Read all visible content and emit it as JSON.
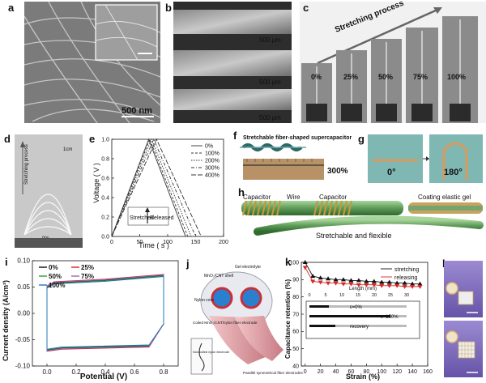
{
  "panels": {
    "a": {
      "label": "a",
      "scale_bar": "500 nm"
    },
    "b": {
      "label": "b",
      "scale_bars": [
        "500 µm",
        "500 µm",
        "500 µm"
      ]
    },
    "c": {
      "label": "c",
      "title": "Stretching process",
      "strains": [
        "0%",
        "25%",
        "50%",
        "75%",
        "100%"
      ]
    },
    "d": {
      "label": "d",
      "arrow_label": "Stretching process",
      "scale": "1cm",
      "zero": "0%"
    },
    "e": {
      "label": "e",
      "xlabel": "Time ( s )",
      "ylabel": "Voltage ( V )",
      "legend": [
        "0%",
        "100%",
        "200%",
        "300%",
        "400%"
      ],
      "stretched": "Stretched",
      "released": "Released"
    },
    "f": {
      "label": "f",
      "title": "Stretchable fiber-shaped supercapacitor",
      "percent": "300%"
    },
    "g": {
      "label": "g",
      "angle_left": "0°",
      "angle_right": "180°"
    },
    "h": {
      "label": "h",
      "capacitor_left": "Capacitor",
      "wire": "Wire",
      "capacitor_right": "Capacitor",
      "coating": "Coating elastic gel",
      "caption": "Stretchable and flexible"
    },
    "i": {
      "label": "i",
      "xlabel": "Potential (V)",
      "ylabel": "Current density (A/cm³)",
      "legend": [
        "0%",
        "25%",
        "50%",
        "75%",
        "100%"
      ]
    },
    "j": {
      "label": "j",
      "gel": "Gel electrolyte",
      "shell": "MnO₂/CNT shell",
      "core": "Nylon core",
      "coiled": "Coiled MnO₂/CNT/nylon fiber electrode",
      "parallel": "Parallel symmetrical fiber electrodes",
      "inset": "Non-coiled nylon electrode"
    },
    "k": {
      "label": "k",
      "xlabel": "Strain (%)",
      "ylabel": "Capacitance retention (%)",
      "legend": [
        "stretching",
        "releasing"
      ],
      "inset_xlabel": "Length (mm)",
      "eps0": "ε=0%",
      "eps150": "ε=150%",
      "recovery": "recovery"
    },
    "l": {
      "label": "l"
    }
  },
  "chart_data": [
    {
      "type": "line",
      "title": "",
      "xlabel": "Time ( s )",
      "ylabel": "Voltage ( V )",
      "xlim": [
        0,
        200
      ],
      "ylim": [
        0,
        1.0
      ],
      "xticks": [
        0,
        50,
        100,
        150,
        200
      ],
      "yticks": [
        0.0,
        0.2,
        0.4,
        0.6,
        0.8,
        1.0
      ],
      "legend_position": "top-right",
      "series": [
        {
          "name": "0%",
          "x": [
            0,
            66,
            132
          ],
          "y": [
            0,
            1.0,
            0
          ]
        },
        {
          "name": "100%",
          "x": [
            0,
            68,
            136
          ],
          "y": [
            0,
            1.0,
            0
          ]
        },
        {
          "name": "200%",
          "x": [
            0,
            71,
            142
          ],
          "y": [
            0,
            1.0,
            0
          ]
        },
        {
          "name": "300%",
          "x": [
            0,
            75,
            150
          ],
          "y": [
            0,
            1.0,
            0
          ]
        },
        {
          "name": "400%",
          "x": [
            0,
            80,
            160
          ],
          "y": [
            0,
            1.0,
            0
          ]
        }
      ]
    },
    {
      "type": "line",
      "title": "",
      "xlabel": "Potential (V)",
      "ylabel": "Current density (A/cm³)",
      "xlim": [
        -0.1,
        0.9
      ],
      "ylim": [
        -0.1,
        0.1
      ],
      "xticks": [
        0.0,
        0.2,
        0.4,
        0.6,
        0.8
      ],
      "yticks": [
        -0.1,
        -0.05,
        0.0,
        0.05,
        0.1
      ],
      "legend_position": "top-left",
      "series": [
        {
          "name": "0%",
          "upper": [
            [
              0,
              0.05
            ],
            [
              0.05,
              0.058
            ],
            [
              0.4,
              0.063
            ],
            [
              0.8,
              0.072
            ]
          ],
          "lower": [
            [
              0.8,
              -0.02
            ],
            [
              0.7,
              -0.062
            ],
            [
              0.1,
              -0.066
            ],
            [
              0,
              -0.07
            ]
          ]
        },
        {
          "name": "25%",
          "upper": [
            [
              0,
              0.052
            ],
            [
              0.05,
              0.06
            ],
            [
              0.4,
              0.065
            ],
            [
              0.8,
              0.074
            ]
          ],
          "lower": [
            [
              0.8,
              -0.02
            ],
            [
              0.7,
              -0.064
            ],
            [
              0.1,
              -0.068
            ],
            [
              0,
              -0.072
            ]
          ]
        },
        {
          "name": "50%",
          "upper": [
            [
              0,
              0.048
            ],
            [
              0.05,
              0.057
            ],
            [
              0.4,
              0.062
            ],
            [
              0.8,
              0.071
            ]
          ],
          "lower": [
            [
              0.8,
              -0.02
            ],
            [
              0.7,
              -0.061
            ],
            [
              0.1,
              -0.065
            ],
            [
              0,
              -0.069
            ]
          ]
        },
        {
          "name": "75%",
          "upper": [
            [
              0,
              0.051
            ],
            [
              0.05,
              0.059
            ],
            [
              0.4,
              0.064
            ],
            [
              0.8,
              0.073
            ]
          ],
          "lower": [
            [
              0.8,
              -0.02
            ],
            [
              0.7,
              -0.063
            ],
            [
              0.1,
              -0.067
            ],
            [
              0,
              -0.071
            ]
          ]
        },
        {
          "name": "100%",
          "upper": [
            [
              0,
              0.049
            ],
            [
              0.05,
              0.056
            ],
            [
              0.4,
              0.061
            ],
            [
              0.8,
              0.07
            ]
          ],
          "lower": [
            [
              0.8,
              -0.02
            ],
            [
              0.7,
              -0.06
            ],
            [
              0.1,
              -0.064
            ],
            [
              0,
              -0.068
            ]
          ]
        }
      ]
    },
    {
      "type": "line",
      "title": "",
      "xlabel": "Strain (%)",
      "ylabel": "Capacitance retention (%)",
      "xlim": [
        -5,
        160
      ],
      "ylim": [
        40,
        100
      ],
      "xticks": [
        0,
        20,
        40,
        60,
        80,
        100,
        120,
        140,
        160
      ],
      "yticks": [
        40,
        50,
        60,
        70,
        80,
        90,
        100
      ],
      "legend_position": "top-right",
      "series": [
        {
          "name": "stretching",
          "x": [
            0,
            10,
            20,
            30,
            40,
            50,
            60,
            70,
            80,
            90,
            100,
            110,
            120,
            130,
            140,
            150
          ],
          "y": [
            100,
            92,
            91,
            90.5,
            90,
            90,
            89.5,
            89.5,
            89,
            89,
            88.5,
            88.5,
            88,
            88,
            87.5,
            87.5
          ]
        },
        {
          "name": "releasing",
          "x": [
            0,
            10,
            20,
            30,
            40,
            50,
            60,
            70,
            80,
            90,
            100,
            110,
            120,
            130,
            140,
            150
          ],
          "y": [
            97,
            89,
            88.5,
            88,
            88,
            87.5,
            87.5,
            87,
            87,
            87,
            86.5,
            86.5,
            86.5,
            86,
            86,
            86
          ]
        }
      ],
      "inset": {
        "xlabel": "Length (mm)",
        "xticks": [
          0,
          5,
          10,
          15,
          20,
          25,
          30
        ]
      }
    }
  ],
  "colors": {
    "accent": "#d62728",
    "line_e": "#555555",
    "black": "#111111"
  }
}
